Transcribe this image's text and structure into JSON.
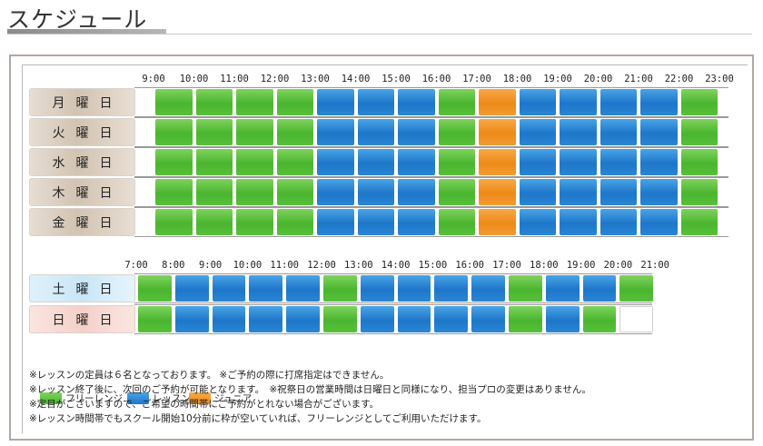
{
  "title": "スケジュール",
  "weekday_times": [
    "9:00",
    "10:00",
    "11:00",
    "12:00",
    "13:00",
    "14:00",
    "15:00",
    "16:00",
    "17:00",
    "18:00",
    "19:00",
    "20:00",
    "21:00",
    "22:00",
    "23:00"
  ],
  "weekend_times": [
    "7:00",
    "8:00",
    "9:00",
    "10:00",
    "11:00",
    "12:00",
    "13:00",
    "14:00",
    "15:00",
    "16:00",
    "17:00",
    "18:00",
    "19:00",
    "20:00",
    "21:00"
  ],
  "weekday_rows": [
    {
      "label": "月曜日",
      "cells": [
        "free",
        "free",
        "free",
        "free",
        "lesson",
        "lesson",
        "lesson",
        "free",
        "junior",
        "lesson",
        "lesson",
        "lesson",
        "lesson",
        "free"
      ]
    },
    {
      "label": "火曜日",
      "cells": [
        "free",
        "free",
        "free",
        "free",
        "lesson",
        "lesson",
        "lesson",
        "free",
        "junior",
        "lesson",
        "lesson",
        "lesson",
        "lesson",
        "free"
      ]
    },
    {
      "label": "水曜日",
      "cells": [
        "free",
        "free",
        "free",
        "free",
        "lesson",
        "lesson",
        "lesson",
        "free",
        "junior",
        "lesson",
        "lesson",
        "lesson",
        "lesson",
        "free"
      ]
    },
    {
      "label": "木曜日",
      "cells": [
        "free",
        "free",
        "free",
        "free",
        "lesson",
        "lesson",
        "lesson",
        "free",
        "junior",
        "lesson",
        "lesson",
        "lesson",
        "lesson",
        "free"
      ]
    },
    {
      "label": "金曜日",
      "cells": [
        "free",
        "free",
        "free",
        "free",
        "lesson",
        "lesson",
        "lesson",
        "free",
        "junior",
        "lesson",
        "lesson",
        "lesson",
        "lesson",
        "free"
      ]
    }
  ],
  "weekend_rows": [
    {
      "label": "土曜日",
      "kind": "sat",
      "cells": [
        "free",
        "lesson",
        "lesson",
        "lesson",
        "lesson",
        "free",
        "lesson",
        "lesson",
        "lesson",
        "lesson",
        "free",
        "lesson",
        "lesson",
        "free"
      ]
    },
    {
      "label": "日曜日",
      "kind": "sun",
      "cells": [
        "free",
        "lesson",
        "lesson",
        "lesson",
        "lesson",
        "free",
        "lesson",
        "lesson",
        "lesson",
        "lesson",
        "free",
        "lesson",
        "free",
        "empty"
      ]
    }
  ],
  "legend": [
    {
      "kind": "free",
      "label": "フリーレンジ"
    },
    {
      "kind": "lesson",
      "label": "レッスン"
    },
    {
      "kind": "junior",
      "label": "ジュニア"
    }
  ],
  "notes": [
    "※レッスンの定員は６名となっております。 ※ご予約の際に打席指定はできません。",
    "※レッスン終了後に、次回のご予約が可能となります。　※祝祭日の営業時間は日曜日と同様になり、担当プロの変更はありません。",
    "※定目がございますので、ご希望の時間帯にご予約がとれない場合がございます。",
    "※レッスン時間帯でもスクール開始10分前に枠が空いていれば、フリーレンジとしてご利用いただけます。"
  ]
}
